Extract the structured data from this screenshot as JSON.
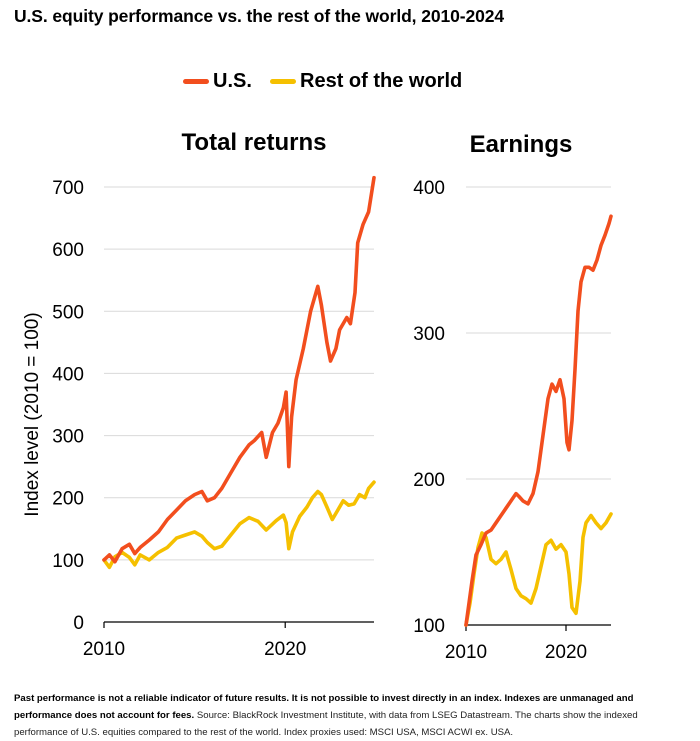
{
  "title": "U.S. equity performance vs. the rest of the world, 2010-2024",
  "legend": [
    {
      "label": "U.S.",
      "color": "#f24e1e"
    },
    {
      "label": "Rest of the world",
      "color": "#f5c000"
    }
  ],
  "chart_data": [
    {
      "type": "line",
      "title": "Total returns",
      "ylabel": "Index level (2010 = 100)",
      "ylim": [
        0,
        700
      ],
      "yticks": [
        "0",
        "100",
        "200",
        "300",
        "400",
        "500",
        "600",
        "700"
      ],
      "xlim": [
        2010,
        2024.9
      ],
      "xticks": [
        "2010",
        "2020"
      ],
      "grid": true,
      "series": [
        {
          "name": "U.S.",
          "color": "#f24e1e",
          "x": [
            2010.0,
            2010.3,
            2010.6,
            2011.0,
            2011.4,
            2011.7,
            2012.0,
            2012.5,
            2013.0,
            2013.5,
            2014.0,
            2014.5,
            2015.0,
            2015.4,
            2015.7,
            2016.1,
            2016.5,
            2017.0,
            2017.5,
            2018.0,
            2018.3,
            2018.7,
            2018.95,
            2019.3,
            2019.6,
            2019.9,
            2020.05,
            2020.2,
            2020.35,
            2020.6,
            2021.0,
            2021.4,
            2021.8,
            2022.0,
            2022.3,
            2022.5,
            2022.8,
            2023.0,
            2023.4,
            2023.6,
            2023.85,
            2024.0,
            2024.3,
            2024.6,
            2024.9
          ],
          "y": [
            100,
            108,
            97,
            118,
            125,
            110,
            120,
            132,
            145,
            165,
            180,
            195,
            205,
            210,
            195,
            200,
            215,
            240,
            265,
            285,
            292,
            305,
            265,
            305,
            320,
            345,
            370,
            250,
            330,
            390,
            440,
            500,
            540,
            510,
            450,
            420,
            440,
            470,
            490,
            480,
            530,
            610,
            640,
            660,
            715
          ]
        },
        {
          "name": "Rest of the world",
          "color": "#f5c000",
          "x": [
            2010.0,
            2010.3,
            2010.6,
            2011.0,
            2011.4,
            2011.7,
            2012.0,
            2012.5,
            2013.0,
            2013.5,
            2014.0,
            2014.5,
            2015.0,
            2015.4,
            2015.7,
            2016.1,
            2016.5,
            2017.0,
            2017.5,
            2018.0,
            2018.5,
            2018.95,
            2019.5,
            2019.9,
            2020.05,
            2020.2,
            2020.4,
            2020.8,
            2021.2,
            2021.5,
            2021.8,
            2022.0,
            2022.3,
            2022.6,
            2022.9,
            2023.2,
            2023.5,
            2023.8,
            2024.1,
            2024.4,
            2024.6,
            2024.9
          ],
          "y": [
            100,
            88,
            105,
            112,
            104,
            92,
            108,
            100,
            112,
            120,
            135,
            140,
            145,
            138,
            128,
            118,
            122,
            140,
            158,
            168,
            162,
            148,
            163,
            172,
            160,
            118,
            145,
            170,
            185,
            200,
            210,
            205,
            185,
            165,
            180,
            195,
            188,
            190,
            205,
            200,
            215,
            225
          ]
        }
      ]
    },
    {
      "type": "line",
      "title": "Earnings",
      "ylabel": "",
      "ylim": [
        100,
        400
      ],
      "yticks": [
        "100",
        "200",
        "300",
        "400"
      ],
      "xlim": [
        2010,
        2024.5
      ],
      "xticks": [
        "2010",
        "2020"
      ],
      "grid": true,
      "series": [
        {
          "name": "U.S.",
          "color": "#f24e1e",
          "x": [
            2010.0,
            2010.3,
            2010.6,
            2011.0,
            2011.5,
            2012.0,
            2012.5,
            2013.0,
            2013.5,
            2014.0,
            2014.5,
            2015.0,
            2015.3,
            2015.7,
            2016.2,
            2016.7,
            2017.2,
            2017.7,
            2018.2,
            2018.6,
            2019.0,
            2019.4,
            2019.8,
            2020.1,
            2020.3,
            2020.6,
            2020.9,
            2021.2,
            2021.5,
            2021.9,
            2022.3,
            2022.7,
            2023.1,
            2023.5,
            2023.9,
            2024.3,
            2024.5
          ],
          "y": [
            100,
            115,
            130,
            148,
            155,
            163,
            165,
            170,
            175,
            180,
            185,
            190,
            188,
            185,
            183,
            190,
            205,
            230,
            255,
            265,
            260,
            268,
            255,
            225,
            220,
            240,
            275,
            315,
            335,
            345,
            345,
            343,
            350,
            360,
            367,
            375,
            380
          ]
        },
        {
          "name": "Rest of the world",
          "color": "#f5c000",
          "x": [
            2010.0,
            2010.4,
            2010.8,
            2011.2,
            2011.6,
            2012.0,
            2012.5,
            2013.0,
            2013.5,
            2014.0,
            2014.5,
            2015.0,
            2015.5,
            2016.0,
            2016.5,
            2017.0,
            2017.5,
            2018.0,
            2018.5,
            2019.0,
            2019.5,
            2020.0,
            2020.3,
            2020.6,
            2021.0,
            2021.4,
            2021.7,
            2022.0,
            2022.5,
            2023.0,
            2023.5,
            2024.0,
            2024.5
          ],
          "y": [
            100,
            115,
            135,
            153,
            163,
            160,
            145,
            142,
            145,
            150,
            138,
            125,
            120,
            118,
            115,
            125,
            140,
            155,
            158,
            152,
            155,
            150,
            135,
            112,
            108,
            130,
            160,
            170,
            175,
            170,
            166,
            170,
            176
          ]
        }
      ]
    }
  ],
  "footnote": {
    "bold": "Past performance is not a reliable indicator of future results. It is not possible to invest directly in an index. Indexes are unmanaged and performance does not account for fees.",
    "regular": " Source: BlackRock Investment Institute, with data from LSEG Datastream. The charts show the indexed performance of U.S. equities compared to the rest of the world. Index proxies used: MSCI USA, MSCI ACWI ex. USA."
  }
}
